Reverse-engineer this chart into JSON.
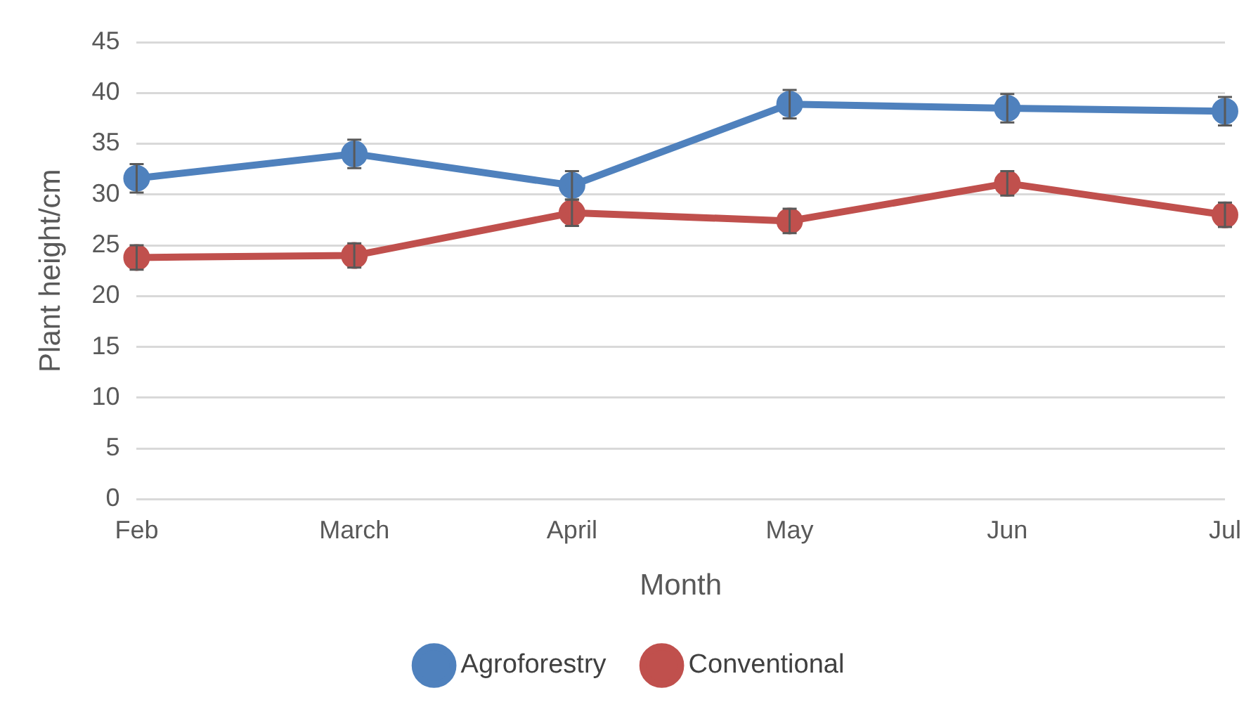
{
  "chart_data": {
    "type": "line",
    "xlabel": "Month",
    "ylabel": "Plant height/cm",
    "categories": [
      "Feb",
      "March",
      "April",
      "May",
      "Jun",
      "Jul"
    ],
    "series": [
      {
        "name": "Agroforestry",
        "color": "#4f81bd",
        "values": [
          31.6,
          34.0,
          30.9,
          38.9,
          38.5,
          38.2
        ],
        "errors": [
          1.4,
          1.4,
          1.4,
          1.4,
          1.4,
          1.4
        ]
      },
      {
        "name": "Conventional",
        "color": "#c0504d",
        "values": [
          23.8,
          24.0,
          28.2,
          27.4,
          31.1,
          28.0
        ],
        "errors": [
          1.2,
          1.2,
          1.3,
          1.2,
          1.2,
          1.2
        ]
      }
    ],
    "ylim": [
      0,
      45
    ],
    "yticks": [
      0,
      5,
      10,
      15,
      20,
      25,
      30,
      35,
      40,
      45
    ],
    "grid": "y",
    "legend": "bottom",
    "marker": "circle",
    "line_style": "solid"
  }
}
